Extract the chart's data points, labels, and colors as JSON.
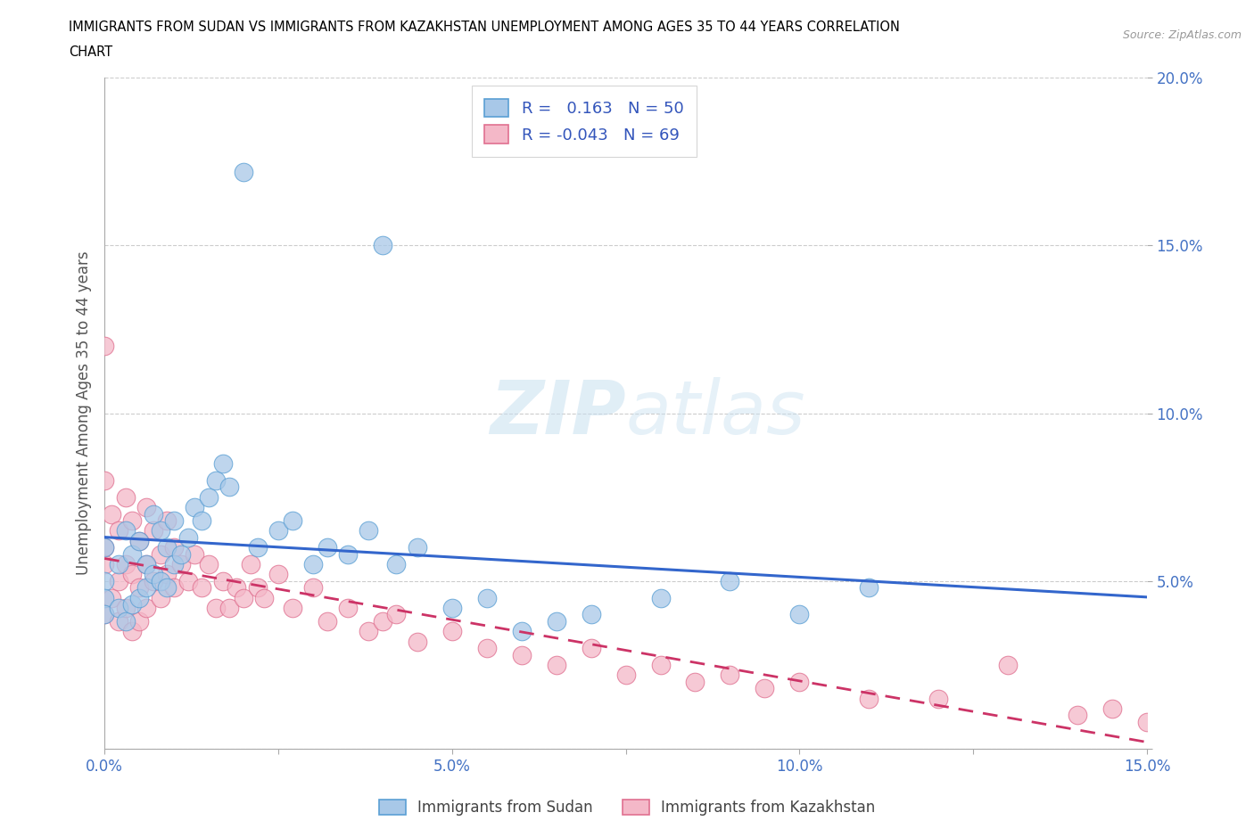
{
  "title_line1": "IMMIGRANTS FROM SUDAN VS IMMIGRANTS FROM KAZAKHSTAN UNEMPLOYMENT AMONG AGES 35 TO 44 YEARS CORRELATION",
  "title_line2": "CHART",
  "source": "Source: ZipAtlas.com",
  "ylabel": "Unemployment Among Ages 35 to 44 years",
  "xlim": [
    0.0,
    0.15
  ],
  "ylim": [
    0.0,
    0.2
  ],
  "xticks": [
    0.0,
    0.025,
    0.05,
    0.075,
    0.1,
    0.125,
    0.15
  ],
  "xtick_labels": [
    "0.0%",
    "",
    "5.0%",
    "",
    "10.0%",
    "",
    "15.0%"
  ],
  "yticks": [
    0.0,
    0.05,
    0.1,
    0.15,
    0.2
  ],
  "ytick_labels_right": [
    "",
    "5.0%",
    "10.0%",
    "15.0%",
    "20.0%"
  ],
  "sudan_color": "#a8c8e8",
  "sudan_edge_color": "#5a9fd4",
  "sudan_line_color": "#3366cc",
  "kazakhstan_color": "#f4b8c8",
  "kazakhstan_edge_color": "#e07090",
  "kazakhstan_line_color": "#cc3366",
  "sudan_R": 0.163,
  "sudan_N": 50,
  "kazakhstan_R": -0.043,
  "kazakhstan_N": 69,
  "watermark": "ZIPatlas",
  "legend_sudan": "Immigrants from Sudan",
  "legend_kazakhstan": "Immigrants from Kazakhstan",
  "sudan_x": [
    0.0,
    0.0,
    0.0,
    0.0,
    0.002,
    0.002,
    0.003,
    0.003,
    0.004,
    0.004,
    0.005,
    0.005,
    0.006,
    0.006,
    0.007,
    0.007,
    0.008,
    0.008,
    0.009,
    0.009,
    0.01,
    0.01,
    0.011,
    0.012,
    0.013,
    0.014,
    0.015,
    0.016,
    0.017,
    0.018,
    0.02,
    0.022,
    0.025,
    0.027,
    0.03,
    0.032,
    0.035,
    0.038,
    0.04,
    0.042,
    0.045,
    0.05,
    0.055,
    0.06,
    0.065,
    0.07,
    0.08,
    0.09,
    0.1,
    0.11
  ],
  "sudan_y": [
    0.05,
    0.045,
    0.06,
    0.04,
    0.055,
    0.042,
    0.065,
    0.038,
    0.058,
    0.043,
    0.062,
    0.045,
    0.055,
    0.048,
    0.07,
    0.052,
    0.065,
    0.05,
    0.06,
    0.048,
    0.068,
    0.055,
    0.058,
    0.063,
    0.072,
    0.068,
    0.075,
    0.08,
    0.085,
    0.078,
    0.172,
    0.06,
    0.065,
    0.068,
    0.055,
    0.06,
    0.058,
    0.065,
    0.15,
    0.055,
    0.06,
    0.042,
    0.045,
    0.035,
    0.038,
    0.04,
    0.045,
    0.05,
    0.04,
    0.048
  ],
  "kazakhstan_x": [
    0.0,
    0.0,
    0.0,
    0.0,
    0.0,
    0.001,
    0.001,
    0.002,
    0.002,
    0.002,
    0.003,
    0.003,
    0.003,
    0.004,
    0.004,
    0.004,
    0.005,
    0.005,
    0.005,
    0.006,
    0.006,
    0.006,
    0.007,
    0.007,
    0.008,
    0.008,
    0.009,
    0.009,
    0.01,
    0.01,
    0.011,
    0.012,
    0.013,
    0.014,
    0.015,
    0.016,
    0.017,
    0.018,
    0.019,
    0.02,
    0.021,
    0.022,
    0.023,
    0.025,
    0.027,
    0.03,
    0.032,
    0.035,
    0.038,
    0.04,
    0.042,
    0.045,
    0.05,
    0.055,
    0.06,
    0.065,
    0.07,
    0.075,
    0.08,
    0.085,
    0.09,
    0.095,
    0.1,
    0.11,
    0.12,
    0.13,
    0.14,
    0.145,
    0.15
  ],
  "kazakhstan_y": [
    0.12,
    0.08,
    0.06,
    0.055,
    0.04,
    0.07,
    0.045,
    0.065,
    0.05,
    0.038,
    0.075,
    0.055,
    0.042,
    0.068,
    0.052,
    0.035,
    0.062,
    0.048,
    0.038,
    0.072,
    0.055,
    0.042,
    0.065,
    0.05,
    0.058,
    0.045,
    0.068,
    0.052,
    0.06,
    0.048,
    0.055,
    0.05,
    0.058,
    0.048,
    0.055,
    0.042,
    0.05,
    0.042,
    0.048,
    0.045,
    0.055,
    0.048,
    0.045,
    0.052,
    0.042,
    0.048,
    0.038,
    0.042,
    0.035,
    0.038,
    0.04,
    0.032,
    0.035,
    0.03,
    0.028,
    0.025,
    0.03,
    0.022,
    0.025,
    0.02,
    0.022,
    0.018,
    0.02,
    0.015,
    0.015,
    0.025,
    0.01,
    0.012,
    0.008
  ]
}
